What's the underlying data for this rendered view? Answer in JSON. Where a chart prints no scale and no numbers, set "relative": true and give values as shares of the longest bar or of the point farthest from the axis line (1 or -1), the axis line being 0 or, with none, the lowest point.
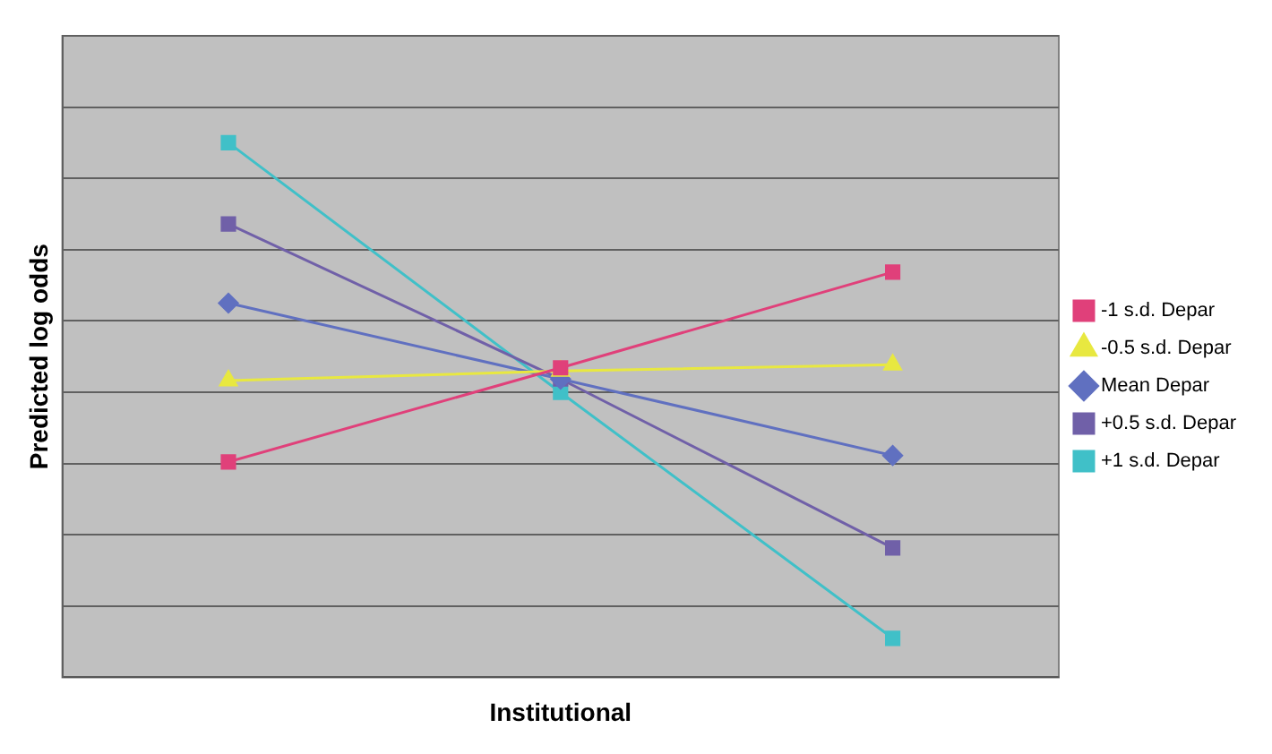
{
  "chart_data": {
    "type": "line",
    "relative": true,
    "xlabel": "Institutional",
    "ylabel": "Predicted log odds",
    "categories": [
      null,
      null,
      null
    ],
    "grid": "y",
    "legend": "right",
    "series": [
      {
        "name": "-1 s.d. Depar",
        "color": "#e0407a",
        "marker": "square",
        "values": [
          0.403,
          0.579,
          0.758
        ]
      },
      {
        "name": "-0.5 s.d. Depar",
        "color": "#e8e840",
        "marker": "triangle",
        "values": [
          0.555,
          0.573,
          0.585
        ]
      },
      {
        "name": "Mean Depar",
        "color": "#6070c0",
        "marker": "diamond",
        "values": [
          0.7,
          0.558,
          0.415
        ]
      },
      {
        "name": "+0.5 s.d. Depar",
        "color": "#7060a8",
        "marker": "square",
        "values": [
          0.848,
          0.558,
          0.242
        ]
      },
      {
        "name": "+1 s.d. Depar",
        "color": "#40c0c8",
        "marker": "square",
        "values": [
          1,
          0.533,
          0.073
        ]
      }
    ]
  }
}
